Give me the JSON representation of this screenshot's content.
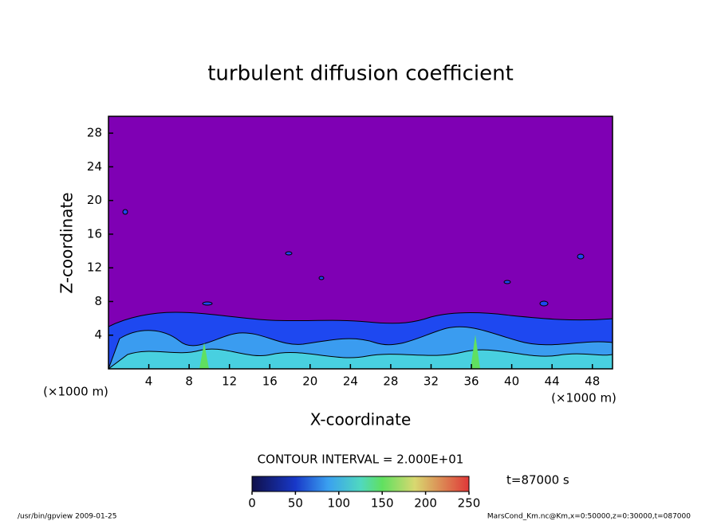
{
  "chart_data": {
    "type": "contour",
    "title": "turbulent diffusion coefficient",
    "x_label": "X-coordinate",
    "y_label": "Z-coordinate",
    "x_unit": "(×1000 m)",
    "y_unit": "(×1000 m)",
    "xlim": [
      0,
      50
    ],
    "xticks": [
      4,
      8,
      12,
      16,
      20,
      24,
      28,
      32,
      36,
      40,
      44,
      48
    ],
    "ylim": [
      0,
      30
    ],
    "yticks": [
      4,
      8,
      12,
      16,
      20,
      24,
      28
    ],
    "contour_interval": "CONTOUR INTERVAL = 2.000E+01",
    "time_label": "t=87000 s",
    "colorbar_lim": [
      0,
      250
    ],
    "colorbar_ticks": [
      0,
      50,
      100,
      150,
      200,
      250
    ],
    "background_color": "#7f00b4",
    "footer_left": "/usr/bin/gpview  2009-01-25",
    "footer_right": "MarsCond_Km.nc@Km,x=0:50000,z=0:30000,t=087000"
  }
}
